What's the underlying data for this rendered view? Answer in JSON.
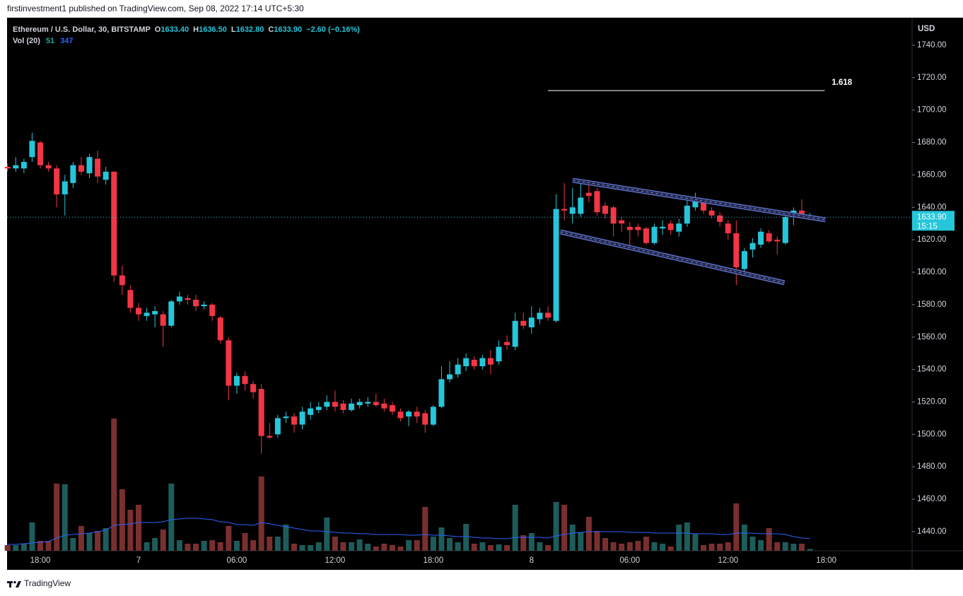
{
  "header": {
    "publisher": "firstinvestment1 published on TradingView.com, Sep 08, 2022 17:14 UTC+5:30"
  },
  "legend": {
    "symbol": "Ethereum / U.S. Dollar, 30, BITSTAMP",
    "o_label": "O",
    "o": "1633.40",
    "h_label": "H",
    "h": "1636.50",
    "l_label": "L",
    "l": "1632.80",
    "c_label": "C",
    "c": "1633.90",
    "change": "−2.60 (−0.16%)"
  },
  "volume_legend": {
    "label": "Vol (20)",
    "value": "51",
    "ma": "347"
  },
  "footer": {
    "brand": "TradingView"
  },
  "chart_data": {
    "type": "candlestick",
    "currency": "USD",
    "categories": [
      null,
      null,
      null,
      null,
      "18:00",
      null,
      null,
      null,
      null,
      null,
      null,
      null,
      null,
      null,
      null,
      null,
      "7",
      null,
      null,
      null,
      null,
      null,
      null,
      null,
      null,
      null,
      null,
      null,
      "06:00",
      null,
      null,
      null,
      null,
      null,
      null,
      null,
      null,
      null,
      null,
      null,
      "12:00",
      null,
      null,
      null,
      null,
      null,
      null,
      null,
      null,
      null,
      null,
      null,
      "18:00",
      null,
      null,
      null,
      null,
      null,
      null,
      null,
      null,
      null,
      null,
      null,
      "8",
      null,
      null,
      null,
      null,
      null,
      null,
      null,
      null,
      null,
      null,
      null,
      "06:00",
      null,
      null,
      null,
      null,
      null,
      null,
      null,
      null,
      null,
      null,
      null,
      "12:00",
      null,
      null,
      null,
      null,
      null,
      null,
      null,
      null,
      null,
      null,
      null,
      "18:00"
    ],
    "open": [
      1665,
      1664,
      1664,
      1671,
      1680,
      1666,
      1664,
      1648,
      1655,
      1666,
      1661,
      1670,
      1657,
      1662,
      1598,
      1589,
      1578,
      1573,
      1574,
      1574,
      1567,
      1582,
      1584,
      1583,
      1579,
      1580,
      1572,
      1558,
      1530,
      1536,
      1531,
      1528,
      1499,
      1500,
      1510,
      1511,
      1506,
      1512,
      1515,
      1517,
      1520,
      1519,
      1515,
      1518,
      1519,
      1520,
      1519,
      1518,
      1514,
      1511,
      1514,
      1513,
      1506,
      1517,
      1534,
      1537,
      1542,
      1546,
      1542,
      1547,
      1545,
      1557,
      1554,
      1570,
      1566,
      1571,
      1575,
      1570,
      1639,
      1636,
      1636,
      1649,
      1650,
      1641,
      1640,
      1632,
      1628,
      1628,
      1627,
      1618,
      1627,
      1630,
      1625,
      1630,
      1640,
      1644,
      1638,
      1635,
      1630,
      1624,
      1602,
      1614,
      1617,
      1624,
      1620,
      1618,
      1634,
      1638,
      1633.4,
      null,
      null
    ],
    "high": [
      1667,
      1671,
      1670,
      1686,
      1681,
      1668,
      1666,
      1660,
      1668,
      1671,
      1673,
      1675,
      1665,
      1662,
      1604,
      1592,
      1581,
      1578,
      1579,
      1576,
      1583,
      1588,
      1586,
      1586,
      1582,
      1581,
      1573,
      1560,
      1538,
      1539,
      1533,
      1531,
      1507,
      1512,
      1514,
      1513,
      1517,
      1520,
      1520,
      1524,
      1527,
      1521,
      1522,
      1522,
      1523,
      1525,
      1522,
      1520,
      1516,
      1515,
      1517,
      1515,
      1518,
      1542,
      1545,
      1547,
      1550,
      1548,
      1549,
      1552,
      1558,
      1561,
      1575,
      1575,
      1579,
      1578,
      1579,
      1648,
      1655,
      1652,
      1656,
      1657,
      1652,
      1643,
      1641,
      1634,
      1631,
      1630,
      1628,
      1630,
      1632,
      1632,
      1633,
      1645,
      1649,
      1645,
      1640,
      1637,
      1632,
      1632,
      1615,
      1621,
      1627,
      1626,
      1622,
      1637,
      1640,
      1645,
      1636.5,
      null,
      null
    ],
    "low": [
      1662,
      1662,
      1661,
      1668,
      1664,
      1662,
      1640,
      1635,
      1652,
      1660,
      1658,
      1655,
      1654,
      1594,
      1586,
      1575,
      1570,
      1570,
      1566,
      1554,
      1566,
      1580,
      1580,
      1576,
      1577,
      1570,
      1556,
      1521,
      1525,
      1527,
      1522,
      1488,
      1497,
      1498,
      1507,
      1501,
      1503,
      1509,
      1513,
      1515,
      1514,
      1513,
      1514,
      1516,
      1517,
      1517,
      1514,
      1512,
      1508,
      1505,
      1507,
      1501,
      1505,
      1516,
      1532,
      1535,
      1539,
      1540,
      1540,
      1537,
      1543,
      1552,
      1552,
      1565,
      1562,
      1568,
      1570,
      1569,
      1632,
      1630,
      1634,
      1643,
      1635,
      1633,
      1622,
      1625,
      1615,
      1622,
      1617,
      1617,
      1623,
      1623,
      1622,
      1628,
      1638,
      1636,
      1633,
      1628,
      1620,
      1592,
      1600,
      1609,
      1615,
      1618,
      1611,
      1617,
      1629,
      1634,
      1632.8,
      null,
      null
    ],
    "close": [
      1664,
      1666,
      1668,
      1681,
      1666,
      1664,
      1648,
      1656,
      1666,
      1662,
      1671,
      1659,
      1662,
      1598,
      1592,
      1578,
      1574,
      1575,
      1576,
      1567,
      1582,
      1585,
      1583,
      1579,
      1580,
      1573,
      1558,
      1530,
      1536,
      1531,
      1526,
      1499,
      1498,
      1510,
      1511,
      1506,
      1514,
      1516,
      1517,
      1520,
      1517,
      1515,
      1519,
      1520,
      1520,
      1518,
      1516,
      1514,
      1510,
      1514,
      1511,
      1506,
      1517,
      1534,
      1537,
      1543,
      1547,
      1542,
      1547,
      1543,
      1554,
      1555,
      1570,
      1567,
      1572,
      1575,
      1572,
      1639,
      1638,
      1640,
      1646,
      1647,
      1637,
      1636,
      1630,
      1630,
      1626,
      1626,
      1618,
      1628,
      1628,
      1626,
      1630,
      1641,
      1644,
      1638,
      1635,
      1631,
      1624,
      1603,
      1613,
      1618,
      1625,
      1619,
      1619,
      1634,
      1638,
      1636,
      1633.9,
      null,
      null
    ],
    "volume": [
      160,
      160,
      200,
      800,
      280,
      280,
      1900,
      1880,
      360,
      700,
      500,
      560,
      640,
      3740,
      1740,
      1160,
      1300,
      240,
      360,
      600,
      1900,
      300,
      200,
      200,
      280,
      300,
      240,
      700,
      280,
      500,
      300,
      2100,
      400,
      400,
      740,
      200,
      160,
      160,
      240,
      940,
      400,
      240,
      240,
      320,
      200,
      120,
      200,
      160,
      120,
      300,
      300,
      1240,
      400,
      660,
      360,
      240,
      760,
      200,
      240,
      160,
      180,
      160,
      1300,
      440,
      500,
      240,
      160,
      1380,
      1300,
      740,
      520,
      960,
      560,
      360,
      240,
      200,
      240,
      280,
      400,
      240,
      200,
      120,
      740,
      800,
      480,
      160,
      200,
      200,
      240,
      1340,
      740,
      400,
      300,
      640,
      240,
      240,
      200,
      200,
      51,
      null,
      null
    ],
    "volume_ma": [
      180,
      180,
      200,
      220,
      240,
      260,
      360,
      440,
      460,
      480,
      500,
      540,
      580,
      720,
      740,
      760,
      800,
      800,
      800,
      820,
      880,
      900,
      920,
      920,
      900,
      880,
      820,
      800,
      740,
      740,
      720,
      800,
      760,
      720,
      680,
      640,
      600,
      560,
      560,
      540,
      520,
      500,
      500,
      480,
      480,
      460,
      460,
      460,
      460,
      440,
      440,
      460,
      440,
      440,
      420,
      400,
      400,
      380,
      360,
      360,
      340,
      340,
      380,
      380,
      380,
      380,
      360,
      420,
      460,
      500,
      520,
      540,
      540,
      540,
      540,
      540,
      520,
      520,
      520,
      500,
      500,
      500,
      500,
      500,
      480,
      480,
      480,
      460,
      460,
      500,
      500,
      500,
      480,
      480,
      480,
      460,
      400,
      360,
      347,
      null,
      null
    ],
    "ylim": [
      1428.2,
      1754.8
    ],
    "yticks": [
      {
        "value": 1440,
        "label": "1440.00"
      },
      {
        "value": 1460,
        "label": "1460.00"
      },
      {
        "value": 1480,
        "label": "1480.00"
      },
      {
        "value": 1500,
        "label": "1500.00"
      },
      {
        "value": 1520,
        "label": "1520.00"
      },
      {
        "value": 1540,
        "label": "1540.00"
      },
      {
        "value": 1560,
        "label": "1560.00"
      },
      {
        "value": 1580,
        "label": "1580.00"
      },
      {
        "value": 1600,
        "label": "1600.00"
      },
      {
        "value": 1620,
        "label": "1620.00"
      },
      {
        "value": 1640,
        "label": "1640.00"
      },
      {
        "value": 1660,
        "label": "1660.00"
      },
      {
        "value": 1680,
        "label": "1680.00"
      },
      {
        "value": 1700,
        "label": "1700.00"
      },
      {
        "value": 1720,
        "label": "1720.00"
      },
      {
        "value": 1740,
        "label": "1740.00"
      }
    ],
    "volume_ylim": [
      0,
      14980
    ],
    "up_color": "#26c6da",
    "down_color": "#f23645",
    "volume_up_color": "#1d5c5a",
    "volume_down_color": "#7a2f2f",
    "volume_ma_color": "#2962ff",
    "last_price": {
      "value": 1633.9,
      "label": "1633.90"
    },
    "countdown": "15:15",
    "fib_level": {
      "value": 1712,
      "label": "1.618"
    },
    "channel_upper": [
      1656.7,
      1632.3
    ],
    "channel_lower": [
      1624.9,
      1593.5
    ]
  }
}
